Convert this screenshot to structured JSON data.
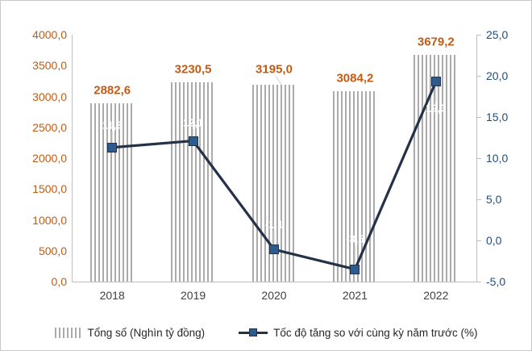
{
  "chart_data": {
    "type": "combo",
    "categories": [
      "2018",
      "2019",
      "2020",
      "2021",
      "2022"
    ],
    "series": [
      {
        "name": "Tổng số (Nghìn tỷ đồng)",
        "type": "bar",
        "axis": "left",
        "values": [
          2882.6,
          3230.5,
          3195.0,
          3084.2,
          3679.2
        ],
        "labels": [
          "2882,6",
          "3230,5",
          "3195,0",
          "3084,2",
          "3679,2"
        ]
      },
      {
        "name": "Tốc độ tăng so với cùng kỳ năm trước (%)",
        "type": "line",
        "axis": "right",
        "values": [
          11.3,
          12.1,
          -1.1,
          -3.5,
          19.3
        ],
        "labels": [
          "11,3",
          "12,1",
          "-1,1",
          "-3,5",
          "19,3"
        ]
      }
    ],
    "left_axis": {
      "min": 0,
      "max": 4000,
      "ticks": [
        "4000,0",
        "3500,0",
        "3000,0",
        "2500,0",
        "2000,0",
        "1500,0",
        "1000,0",
        "500,0",
        "0,0"
      ]
    },
    "right_axis": {
      "min": -5,
      "max": 25,
      "ticks": [
        "25,0",
        "20,0",
        "15,0",
        "10,0",
        "5,0",
        "0,0",
        "-5,0"
      ]
    },
    "grid": false,
    "legend_position": "bottom",
    "title": ""
  },
  "legend": {
    "bar_label": "Tổng số (Nghìn tỷ đồng)",
    "line_label": "Tốc độ tăng so với cùng kỳ năm trước (%)"
  },
  "colors": {
    "bar_stripe": "#ABABAB",
    "bar_data_label": "#C55A11",
    "left_axis_text": "#C55A11",
    "right_axis_text": "#1F4E79",
    "x_axis_text": "#404040",
    "line": "#243247",
    "marker_fill": "#2E5B8F",
    "line_data_label": "#FFFFFF",
    "axis_line": "#BFBFBF",
    "frame_border": "#C9C9C9"
  }
}
